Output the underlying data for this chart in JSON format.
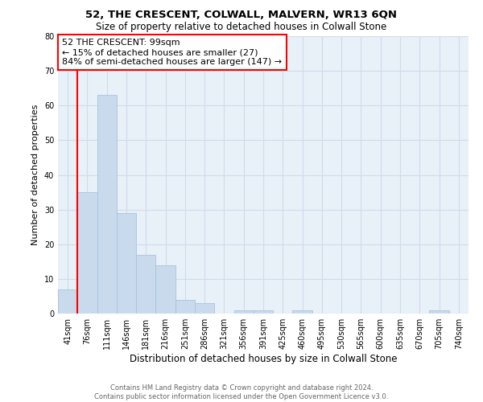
{
  "title": "52, THE CRESCENT, COLWALL, MALVERN, WR13 6QN",
  "subtitle": "Size of property relative to detached houses in Colwall Stone",
  "xlabel": "Distribution of detached houses by size in Colwall Stone",
  "ylabel": "Number of detached properties",
  "footer_line1": "Contains HM Land Registry data © Crown copyright and database right 2024.",
  "footer_line2": "Contains public sector information licensed under the Open Government Licence v3.0.",
  "bin_labels": [
    "41sqm",
    "76sqm",
    "111sqm",
    "146sqm",
    "181sqm",
    "216sqm",
    "251sqm",
    "286sqm",
    "321sqm",
    "356sqm",
    "391sqm",
    "425sqm",
    "460sqm",
    "495sqm",
    "530sqm",
    "565sqm",
    "600sqm",
    "635sqm",
    "670sqm",
    "705sqm",
    "740sqm"
  ],
  "bar_heights": [
    7,
    35,
    63,
    29,
    17,
    14,
    4,
    3,
    0,
    1,
    1,
    0,
    1,
    0,
    0,
    0,
    0,
    0,
    0,
    1,
    0
  ],
  "bar_color": "#c8daec",
  "bar_edgecolor": "#a8c4de",
  "grid_color": "#d0dcea",
  "background_color": "#e8f0f8",
  "property_line_color": "red",
  "property_line_x": 1.0,
  "annotation_text": "52 THE CRESCENT: 99sqm\n← 15% of detached houses are smaller (27)\n84% of semi-detached houses are larger (147) →",
  "annotation_box_facecolor": "white",
  "annotation_box_edgecolor": "red",
  "ylim": [
    0,
    80
  ],
  "yticks": [
    0,
    10,
    20,
    30,
    40,
    50,
    60,
    70,
    80
  ]
}
